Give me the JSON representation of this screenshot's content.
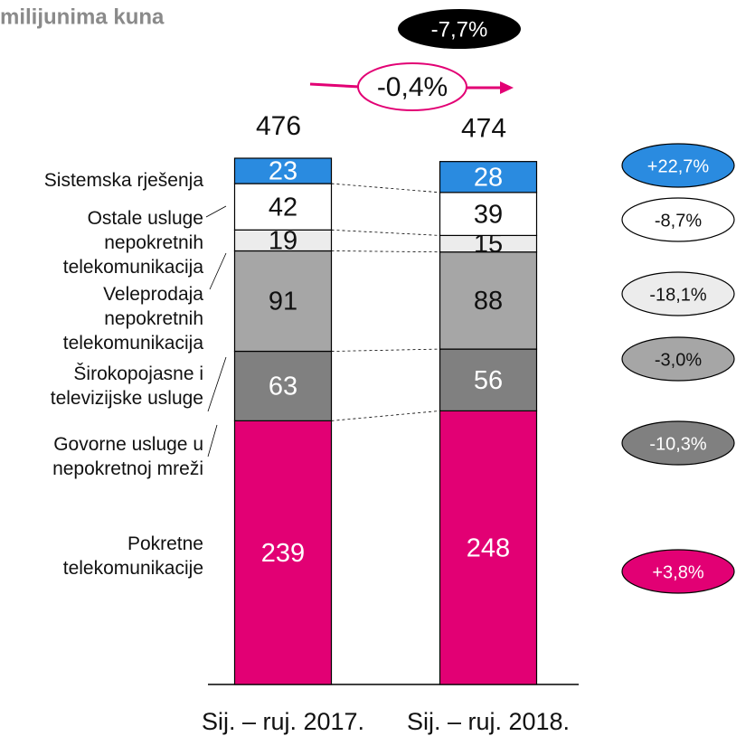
{
  "chart_data": {
    "type": "bar",
    "stacked": true,
    "title": "milijunima kuna",
    "categories": [
      "Sij. – ruj. 2017.",
      "Sij. – ruj. 2018."
    ],
    "totals": [
      476,
      474
    ],
    "annotations": [
      "-7,7%",
      "-0,4%"
    ],
    "series": [
      {
        "name": "Pokretne telekomunikacije",
        "color": "#e20074",
        "values": [
          239,
          248
        ],
        "change": "+3,8%"
      },
      {
        "name": "Govorne usluge u nepokretnoj mreži",
        "color": "#808080",
        "values": [
          63,
          56
        ],
        "change": "-10,3%"
      },
      {
        "name": "Širokopojasne i televizijske usluge",
        "color": "#a6a6a6",
        "values": [
          91,
          88
        ],
        "change": "-3,0%"
      },
      {
        "name": "Veleprodaja nepokretnih telekomunikacija",
        "color": "#ececec",
        "values": [
          19,
          15
        ],
        "change": "-18,1%"
      },
      {
        "name": "Ostale usluge nepokretnih telekomunikacija",
        "color": "#ffffff",
        "values": [
          42,
          39
        ],
        "change": "-8,7%"
      },
      {
        "name": "Sistemska rješenja",
        "color": "#2a8be0",
        "values": [
          23,
          28
        ],
        "change": "+22,7%"
      }
    ]
  }
}
